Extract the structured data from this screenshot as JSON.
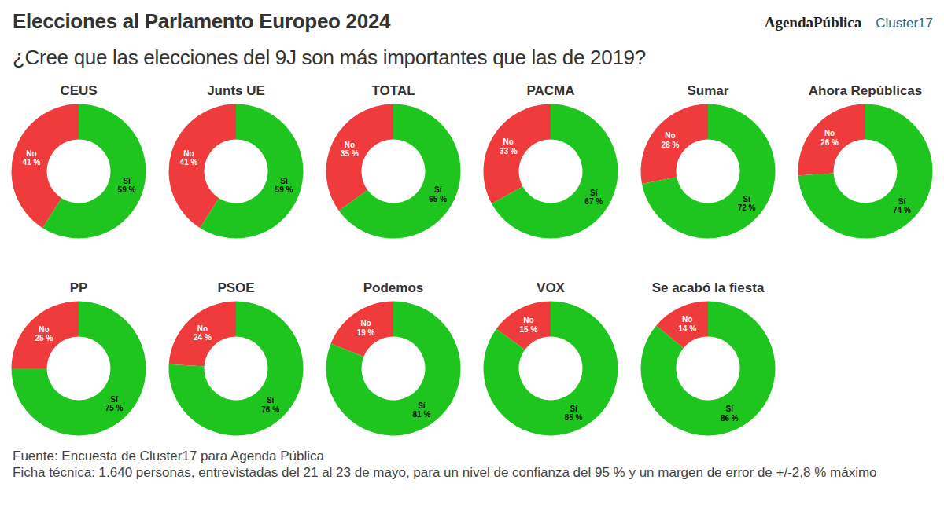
{
  "title": "Elecciones al Parlamento Europeo 2024",
  "subtitle": "¿Cree que las elecciones del 9J son más importantes que las de 2019?",
  "logos": [
    "AgendaPública",
    "Cluster17"
  ],
  "source": "Fuente: Encuesta de Cluster17 para Agenda Pública",
  "technical_note": "Ficha técnica: 1.640 personas, entrevistadas del 21 al 23 de mayo, para un nivel de confianza del 95 % y un margen de error de +/-2,8 % máximo",
  "chart_data": [
    {
      "type": "pie",
      "title": "CEUS",
      "categories": [
        "No",
        "Sí"
      ],
      "values": [
        41,
        59
      ],
      "value_labels": [
        "41 %",
        "59 %"
      ],
      "colors": [
        "#ef3b3b",
        "#1ec51e"
      ],
      "data_labels": true
    },
    {
      "type": "pie",
      "title": "Junts UE",
      "categories": [
        "No",
        "Sí"
      ],
      "values": [
        41,
        59
      ],
      "value_labels": [
        "41 %",
        "59 %"
      ],
      "colors": [
        "#ef3b3b",
        "#1ec51e"
      ],
      "data_labels": true
    },
    {
      "type": "pie",
      "title": "TOTAL",
      "categories": [
        "No",
        "Sí"
      ],
      "values": [
        35,
        65
      ],
      "value_labels": [
        "35 %",
        "65 %"
      ],
      "colors": [
        "#ef3b3b",
        "#1ec51e"
      ],
      "data_labels": true
    },
    {
      "type": "pie",
      "title": "PACMA",
      "categories": [
        "No",
        "Sí"
      ],
      "values": [
        33,
        67
      ],
      "value_labels": [
        "33 %",
        "67 %"
      ],
      "colors": [
        "#ef3b3b",
        "#1ec51e"
      ],
      "data_labels": true
    },
    {
      "type": "pie",
      "title": "Sumar",
      "categories": [
        "No",
        "Sí"
      ],
      "values": [
        28,
        72
      ],
      "value_labels": [
        "28 %",
        "72 %"
      ],
      "colors": [
        "#ef3b3b",
        "#1ec51e"
      ],
      "data_labels": true
    },
    {
      "type": "pie",
      "title": "Ahora Repúblicas",
      "categories": [
        "No",
        "Sí"
      ],
      "values": [
        26,
        74
      ],
      "value_labels": [
        "26 %",
        "74 %"
      ],
      "colors": [
        "#ef3b3b",
        "#1ec51e"
      ],
      "data_labels": true
    },
    {
      "type": "pie",
      "title": "PP",
      "categories": [
        "No",
        "Sí"
      ],
      "values": [
        25,
        75
      ],
      "value_labels": [
        "25 %",
        "75 %"
      ],
      "colors": [
        "#ef3b3b",
        "#1ec51e"
      ],
      "data_labels": true
    },
    {
      "type": "pie",
      "title": "PSOE",
      "categories": [
        "No",
        "Sí"
      ],
      "values": [
        24,
        76
      ],
      "value_labels": [
        "24 %",
        "76 %"
      ],
      "colors": [
        "#ef3b3b",
        "#1ec51e"
      ],
      "data_labels": true
    },
    {
      "type": "pie",
      "title": "Podemos",
      "categories": [
        "No",
        "Sí"
      ],
      "values": [
        19,
        81
      ],
      "value_labels": [
        "19 %",
        "81 %"
      ],
      "colors": [
        "#ef3b3b",
        "#1ec51e"
      ],
      "data_labels": true
    },
    {
      "type": "pie",
      "title": "VOX",
      "categories": [
        "No",
        "Sí"
      ],
      "values": [
        15,
        85
      ],
      "value_labels": [
        "15 %",
        "85 %"
      ],
      "colors": [
        "#ef3b3b",
        "#1ec51e"
      ],
      "data_labels": true
    },
    {
      "type": "pie",
      "title": "Se acabó la fiesta",
      "categories": [
        "No",
        "Sí"
      ],
      "values": [
        14,
        86
      ],
      "value_labels": [
        "14 %",
        "86 %"
      ],
      "colors": [
        "#ef3b3b",
        "#1ec51e"
      ],
      "data_labels": true
    }
  ]
}
